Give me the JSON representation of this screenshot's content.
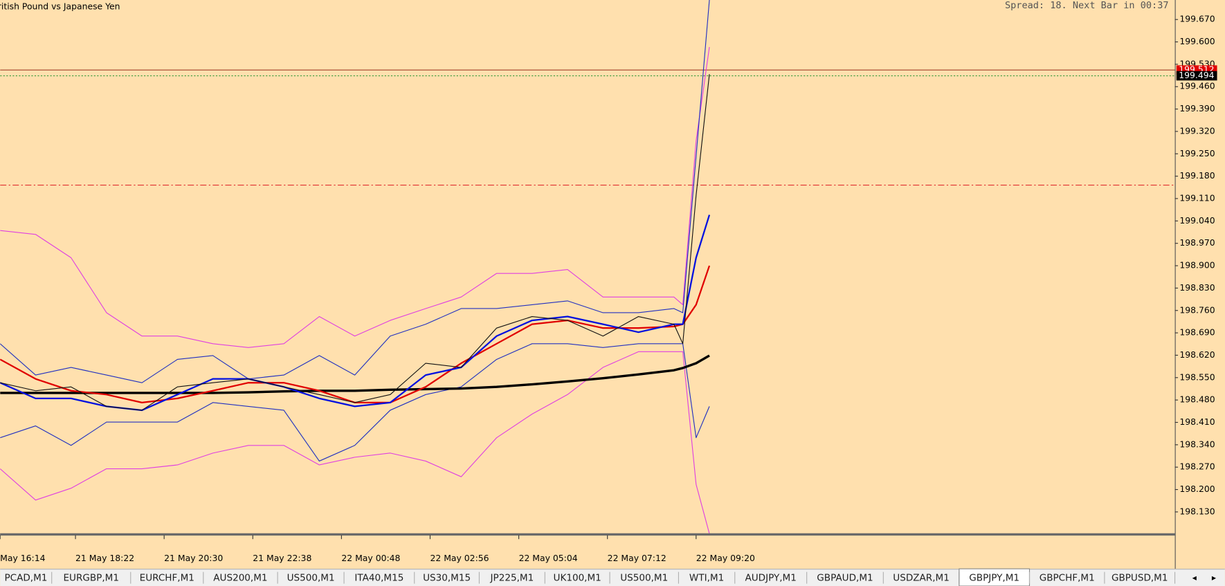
{
  "chart_data": {
    "type": "line",
    "title": "ritish Pound vs Japanese Yen",
    "status": "Spread: 18. Next Bar in 00:37",
    "x": [
      0,
      4,
      8,
      12,
      16,
      20,
      24,
      28,
      32,
      36,
      40,
      44,
      48,
      52,
      56,
      60,
      64,
      68,
      72,
      76,
      77,
      78.5,
      80
    ],
    "xlim": [
      0,
      132.5
    ],
    "xticks": [
      {
        "value": 0,
        "label": "May 16:14"
      },
      {
        "value": 8.5,
        "label": "21 May 18:22"
      },
      {
        "value": 18.5,
        "label": "21 May 20:30"
      },
      {
        "value": 28.5,
        "label": "21 May 22:38"
      },
      {
        "value": 38.5,
        "label": "22 May 00:48"
      },
      {
        "value": 48.5,
        "label": "22 May 02:56"
      },
      {
        "value": 58.5,
        "label": "22 May 05:04"
      },
      {
        "value": 68.5,
        "label": "22 May 07:12"
      },
      {
        "value": 78.5,
        "label": "22 May 09:20"
      }
    ],
    "ylim": [
      198.062,
      199.731
    ],
    "yticks": [
      {
        "value": 199.67,
        "label": "199.670"
      },
      {
        "value": 199.6,
        "label": "199.600"
      },
      {
        "value": 199.53,
        "label": "199.530"
      },
      {
        "value": 199.46,
        "label": "199.460"
      },
      {
        "value": 199.39,
        "label": "199.390"
      },
      {
        "value": 199.32,
        "label": "199.320"
      },
      {
        "value": 199.25,
        "label": "199.250"
      },
      {
        "value": 199.18,
        "label": "199.180"
      },
      {
        "value": 199.11,
        "label": "199.110"
      },
      {
        "value": 199.04,
        "label": "199.040"
      },
      {
        "value": 198.97,
        "label": "198.970"
      },
      {
        "value": 198.9,
        "label": "198.900"
      },
      {
        "value": 198.83,
        "label": "198.830"
      },
      {
        "value": 198.76,
        "label": "198.760"
      },
      {
        "value": 198.69,
        "label": "198.690"
      },
      {
        "value": 198.62,
        "label": "198.620"
      },
      {
        "value": 198.55,
        "label": "198.550"
      },
      {
        "value": 198.48,
        "label": "198.480"
      },
      {
        "value": 198.41,
        "label": "198.410"
      },
      {
        "value": 198.34,
        "label": "198.340"
      },
      {
        "value": 198.27,
        "label": "198.270"
      },
      {
        "value": 198.2,
        "label": "198.200"
      },
      {
        "value": 198.13,
        "label": "198.130"
      }
    ],
    "series": [
      {
        "color": "#e040e0",
        "width": 1,
        "values": [
          199.01,
          198.998,
          198.925,
          198.753,
          198.68,
          198.68,
          198.656,
          198.644,
          198.656,
          198.741,
          198.68,
          198.729,
          198.766,
          198.802,
          198.876,
          198.876,
          198.888,
          198.802,
          198.802,
          198.802,
          198.778,
          199.291,
          199.584
        ]
      },
      {
        "color": "#e040e0",
        "width": 1,
        "values": [
          198.265,
          198.167,
          198.204,
          198.265,
          198.265,
          198.277,
          198.314,
          198.338,
          198.338,
          198.277,
          198.301,
          198.314,
          198.289,
          198.24,
          198.362,
          198.436,
          198.497,
          198.582,
          198.631,
          198.631,
          198.631,
          198.216,
          198.062
        ]
      },
      {
        "color": "#2030c0",
        "width": 1,
        "values": [
          198.656,
          198.558,
          198.582,
          198.558,
          198.534,
          198.607,
          198.619,
          198.546,
          198.558,
          198.619,
          198.558,
          198.68,
          198.717,
          198.766,
          198.766,
          198.778,
          198.79,
          198.753,
          198.753,
          198.766,
          198.753,
          199.242,
          199.731
        ]
      },
      {
        "color": "#2030c0",
        "width": 1,
        "values": [
          198.362,
          198.399,
          198.338,
          198.411,
          198.411,
          198.411,
          198.472,
          198.46,
          198.448,
          198.289,
          198.338,
          198.448,
          198.497,
          198.521,
          198.607,
          198.656,
          198.656,
          198.644,
          198.656,
          198.656,
          198.656,
          198.362,
          198.46
        ]
      },
      {
        "color": "#000000",
        "width": 3,
        "values": [
          198.502,
          198.502,
          198.502,
          198.502,
          198.502,
          198.502,
          198.502,
          198.504,
          198.507,
          198.509,
          198.509,
          198.512,
          198.514,
          198.516,
          198.521,
          198.529,
          198.538,
          198.548,
          198.56,
          198.573,
          198.58,
          198.595,
          198.619
        ]
      },
      {
        "color": "#e00000",
        "width": 2,
        "values": [
          198.607,
          198.546,
          198.509,
          198.497,
          198.472,
          198.485,
          198.509,
          198.534,
          198.534,
          198.509,
          198.472,
          198.472,
          198.521,
          198.595,
          198.656,
          198.717,
          198.729,
          198.705,
          198.705,
          198.71,
          198.717,
          198.778,
          198.9
        ]
      },
      {
        "color": "#0010e0",
        "width": 2,
        "values": [
          198.534,
          198.485,
          198.485,
          198.46,
          198.448,
          198.497,
          198.546,
          198.546,
          198.521,
          198.485,
          198.46,
          198.472,
          198.558,
          198.582,
          198.68,
          198.729,
          198.741,
          198.717,
          198.692,
          198.717,
          198.717,
          198.925,
          199.059
        ]
      },
      {
        "color": "#111111",
        "width": 1,
        "values": [
          198.534,
          198.509,
          198.521,
          198.46,
          198.448,
          198.521,
          198.534,
          198.546,
          198.521,
          198.497,
          198.472,
          198.497,
          198.595,
          198.582,
          198.705,
          198.741,
          198.729,
          198.68,
          198.741,
          198.717,
          198.656,
          199.12,
          199.499
        ]
      }
    ],
    "levels": [
      {
        "value": 199.512,
        "color": "#a0402a",
        "style": "solid"
      },
      {
        "value": 199.494,
        "color": "#3a9a3a",
        "style": "dotted"
      },
      {
        "value": 199.152,
        "color": "#e03030",
        "style": "dashdot"
      }
    ],
    "price_labels": [
      {
        "value": 199.512,
        "color": "#e00000"
      },
      {
        "value": 199.494,
        "color": "#000000"
      }
    ],
    "tabs": [
      "PCAD,M1",
      "EURGBP,M1",
      "EURCHF,M1",
      "AUS200,M1",
      "US500,M1",
      "ITA40,M15",
      "US30,M15",
      "JP225,M1",
      "UK100,M1",
      "US500,M1",
      "WTI,M1",
      "AUDJPY,M1",
      "GBPAUD,M1",
      "USDZAR,M1",
      "GBPJPY,M1",
      "GBPCHF,M1",
      "GBPUSD,M1"
    ],
    "active_tab": "GBPJPY,M1"
  }
}
